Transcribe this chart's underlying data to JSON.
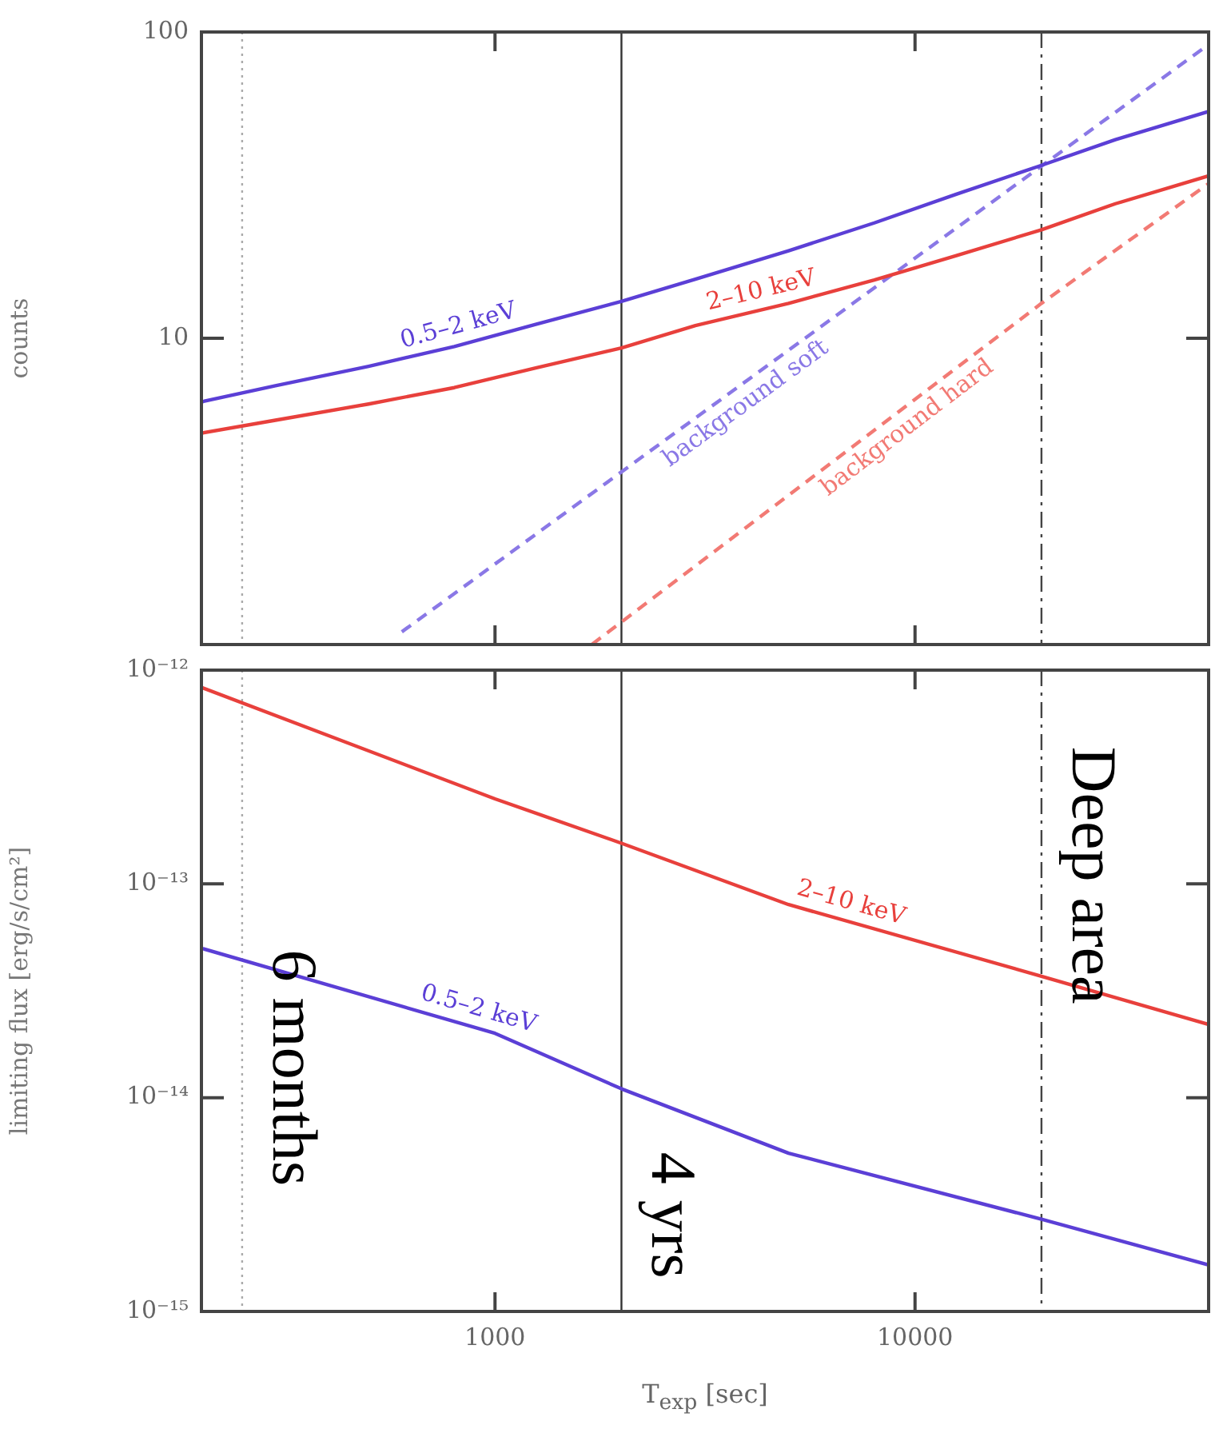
{
  "chart_data": [
    {
      "type": "line",
      "ylabel": "counts",
      "log": "xy",
      "xlim": [
        200,
        50000
      ],
      "ylim": [
        1,
        100
      ],
      "yticks": [
        10,
        100
      ],
      "tick_labels": "y",
      "grid": false,
      "legend": false,
      "line_style": "solid",
      "series": [
        {
          "name": "0.5–2 keV",
          "color": "#5b3fd6",
          "x": [
            200,
            300,
            500,
            800,
            1250,
            2000,
            3000,
            5000,
            8000,
            12500,
            20000,
            30000,
            50000
          ],
          "values": [
            6.2,
            7.0,
            8.1,
            9.4,
            11.1,
            13.2,
            15.6,
            19.3,
            23.8,
            29.5,
            36.7,
            44.5,
            55
          ]
        },
        {
          "name": "2–10 keV",
          "color": "#e8403c",
          "x": [
            200,
            300,
            500,
            800,
            1250,
            2000,
            3000,
            5000,
            8000,
            12500,
            20000,
            30000,
            50000
          ],
          "values": [
            4.9,
            5.4,
            6.1,
            6.9,
            8.0,
            9.3,
            11.0,
            13.0,
            15.5,
            18.6,
            22.6,
            27.5,
            33.9
          ]
        },
        {
          "name": "background soft",
          "color": "#8a78e6",
          "line_style": "dashed",
          "x": [
            600,
            20000,
            50000
          ],
          "values": [
            1.1,
            36.5,
            91
          ]
        },
        {
          "name": "background hard",
          "color": "#f27a74",
          "line_style": "dashed",
          "x": [
            1700,
            20000,
            50000
          ],
          "values": [
            1,
            13,
            32
          ]
        }
      ],
      "ref_lines": [
        {
          "axis": "x",
          "value": 250,
          "color": "#aaaaaa",
          "line_style": "dotted"
        },
        {
          "axis": "x",
          "value": 2000,
          "color": "#333333",
          "line_style": "solid"
        },
        {
          "axis": "x",
          "value": 20000,
          "color": "#444444",
          "line_style": "dashed"
        }
      ]
    },
    {
      "type": "line",
      "ylabel": "limiting flux [erg/s/cm²]",
      "xlabel": "T$_{exp}$ [sec]",
      "log": "xy",
      "xlim": [
        200,
        50000
      ],
      "ylim": [
        1e-15,
        1e-12
      ],
      "xticks": [
        1000,
        10000
      ],
      "yticks": [
        {
          "value": 1e-15,
          "label": "10⁻¹⁵"
        },
        {
          "value": 1e-14,
          "label": "10⁻¹⁴"
        },
        {
          "value": 1e-13,
          "label": "10⁻¹³"
        },
        {
          "value": 1e-12,
          "label": "10⁻¹²"
        }
      ],
      "grid": false,
      "legend": false,
      "line_style": "solid",
      "series": [
        {
          "name": "2–10 keV",
          "color": "#e8403c",
          "x": [
            200,
            1000,
            2000,
            5000,
            20000,
            50000
          ],
          "values": [
            8.3e-13,
            2.5e-13,
            1.55e-13,
            8e-14,
            3.7e-14,
            2.2e-14
          ]
        },
        {
          "name": "0.5–2 keV",
          "color": "#5b3fd6",
          "x": [
            200,
            1000,
            2000,
            5000,
            20000,
            50000
          ],
          "values": [
            5e-14,
            2e-14,
            1.1e-14,
            5.5e-15,
            2.7e-15,
            1.65e-15
          ]
        }
      ],
      "ref_lines": [
        {
          "axis": "x",
          "value": 250,
          "label": "6 months",
          "color": "#aaaaaa",
          "line_style": "dotted"
        },
        {
          "axis": "x",
          "value": 2000,
          "label": "4 yrs",
          "color": "#333333",
          "line_style": "solid"
        },
        {
          "axis": "x",
          "value": 20000,
          "label": "Deep area",
          "color": "#444444",
          "line_style": "dashed"
        }
      ]
    }
  ]
}
